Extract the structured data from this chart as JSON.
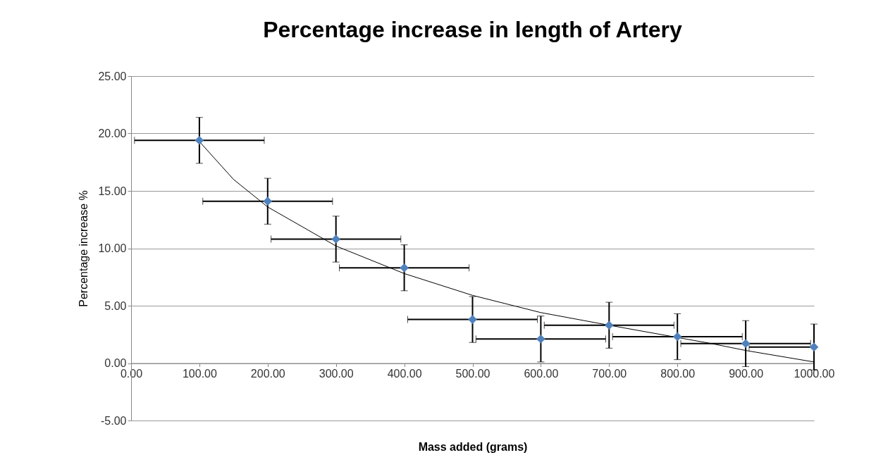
{
  "chart_data": {
    "type": "scatter",
    "title": "Percentage increase in length of Artery",
    "xlabel": "Mass added (grams)",
    "ylabel": "Percentage increase %",
    "xlim": [
      0,
      1000
    ],
    "ylim": [
      -5,
      25
    ],
    "xticks": [
      {
        "value": 0,
        "label": "0.00"
      },
      {
        "value": 100,
        "label": "100.00"
      },
      {
        "value": 200,
        "label": "200.00"
      },
      {
        "value": 300,
        "label": "300.00"
      },
      {
        "value": 400,
        "label": "400.00"
      },
      {
        "value": 500,
        "label": "500.00"
      },
      {
        "value": 600,
        "label": "600.00"
      },
      {
        "value": 700,
        "label": "700.00"
      },
      {
        "value": 800,
        "label": "800.00"
      },
      {
        "value": 900,
        "label": "900.00"
      },
      {
        "value": 1000,
        "label": "1000.00"
      }
    ],
    "yticks": [
      {
        "value": -5,
        "label": "-5.00"
      },
      {
        "value": 0,
        "label": "0.00"
      },
      {
        "value": 5,
        "label": "5.00"
      },
      {
        "value": 10,
        "label": "10.00"
      },
      {
        "value": 15,
        "label": "15.00"
      },
      {
        "value": 20,
        "label": "20.00"
      },
      {
        "value": 25,
        "label": "25.00"
      }
    ],
    "grid": "y",
    "marker": "diamond",
    "series": [
      {
        "color": "#4f81bd",
        "x": [
          100,
          200,
          300,
          400,
          500,
          600,
          700,
          800,
          900,
          1000
        ],
        "values": [
          19.4,
          14.1,
          10.8,
          8.3,
          3.8,
          2.1,
          3.3,
          2.3,
          1.7,
          1.4
        ],
        "errors": [
          2,
          2,
          2,
          2,
          2,
          2,
          2,
          2,
          2,
          2
        ],
        "xerrors": [
          95,
          95,
          95,
          95,
          95,
          95,
          95,
          95,
          95,
          [
            905,
            1000
          ]
        ]
      },
      {
        "type": "line",
        "marker": "none",
        "color": "#000000",
        "x": [
          100,
          150,
          200,
          300,
          400,
          500,
          600,
          700,
          850,
          900,
          1000
        ],
        "values": [
          19.3,
          16.0,
          13.6,
          10.2,
          7.8,
          5.9,
          4.4,
          3.3,
          1.7,
          1.1,
          0.1
        ]
      }
    ]
  }
}
